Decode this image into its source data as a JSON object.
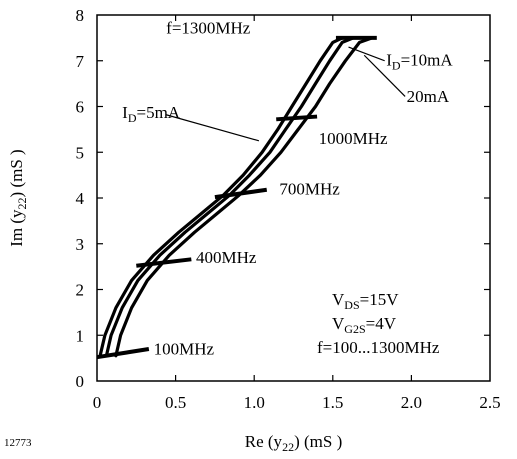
{
  "chart_data": {
    "type": "line",
    "figure_id": "12773",
    "title": "",
    "xlabel": {
      "base": "Re (y",
      "sub": "22",
      "unit": ") (mS )"
    },
    "ylabel": {
      "base": "Im (y",
      "sub": "22",
      "unit": ") (mS )"
    },
    "xlim": [
      0,
      2.5
    ],
    "ylim": [
      0,
      8
    ],
    "x_ticks": [
      0,
      0.5,
      1.0,
      1.5,
      2.0,
      2.5
    ],
    "x_tick_labels": [
      "0",
      "0.5",
      "1.0",
      "1.5",
      "2.0",
      "2.5"
    ],
    "y_ticks": [
      0,
      1,
      2,
      3,
      4,
      5,
      6,
      7,
      8
    ],
    "y_tick_labels": [
      "0",
      "1",
      "2",
      "3",
      "4",
      "5",
      "6",
      "7",
      "8"
    ],
    "grid": false,
    "series": [
      {
        "id": "id5",
        "x": [
          0.02,
          0.05,
          0.12,
          0.22,
          0.36,
          0.52,
          0.66,
          0.8,
          0.93,
          1.05,
          1.15,
          1.24,
          1.33,
          1.42,
          1.5,
          1.56
        ],
        "y": [
          0.55,
          1.0,
          1.6,
          2.2,
          2.75,
          3.25,
          3.65,
          4.05,
          4.5,
          5.0,
          5.5,
          6.0,
          6.5,
          7.0,
          7.4,
          7.5
        ]
      },
      {
        "id": "id10",
        "x": [
          0.06,
          0.09,
          0.16,
          0.26,
          0.4,
          0.56,
          0.7,
          0.84,
          0.97,
          1.1,
          1.2,
          1.3,
          1.39,
          1.48,
          1.56,
          1.63
        ],
        "y": [
          0.55,
          1.0,
          1.6,
          2.2,
          2.75,
          3.25,
          3.65,
          4.05,
          4.5,
          5.0,
          5.5,
          6.0,
          6.5,
          7.0,
          7.4,
          7.5
        ]
      },
      {
        "id": "id20",
        "x": [
          0.12,
          0.15,
          0.22,
          0.32,
          0.46,
          0.62,
          0.76,
          0.9,
          1.04,
          1.17,
          1.28,
          1.39,
          1.48,
          1.58,
          1.67,
          1.75
        ],
        "y": [
          0.55,
          1.0,
          1.6,
          2.2,
          2.75,
          3.25,
          3.65,
          4.05,
          4.5,
          5.0,
          5.5,
          6.0,
          6.5,
          7.0,
          7.4,
          7.5
        ]
      }
    ],
    "frequency_markers": [
      {
        "label": "100MHz",
        "x1": 0.0,
        "y1": 0.52,
        "x2": 0.33,
        "y2": 0.7,
        "label_x": 0.36,
        "label_y": 0.58
      },
      {
        "label": "400MHz",
        "x1": 0.25,
        "y1": 2.52,
        "x2": 0.6,
        "y2": 2.66,
        "label_x": 0.63,
        "label_y": 2.58
      },
      {
        "label": "700MHz",
        "x1": 0.75,
        "y1": 4.02,
        "x2": 1.08,
        "y2": 4.18,
        "label_x": 1.16,
        "label_y": 4.08
      },
      {
        "label": "1000MHz",
        "x1": 1.14,
        "y1": 5.72,
        "x2": 1.4,
        "y2": 5.78,
        "label_x": 1.41,
        "label_y": 5.18
      },
      {
        "label": "f=1300MHz",
        "x1": 1.52,
        "y1": 7.5,
        "x2": 1.78,
        "y2": 7.5,
        "label_x": 0.44,
        "label_y": 7.6
      }
    ],
    "series_labels": [
      {
        "base": "I",
        "sub": "D",
        "rest": "=5mA",
        "x": 0.16,
        "y": 5.75,
        "lx1": 0.44,
        "ly1": 5.82,
        "lx2": 1.03,
        "ly2": 5.25
      },
      {
        "base": "I",
        "sub": "D",
        "rest": "=10mA",
        "x": 1.84,
        "y": 6.9,
        "lx1": 1.83,
        "ly1": 7.0,
        "lx2": 1.6,
        "ly2": 7.3
      },
      {
        "base": "",
        "sub": "",
        "rest": "20mA",
        "x": 1.97,
        "y": 6.1,
        "lx1": 1.96,
        "ly1": 6.22,
        "lx2": 1.7,
        "ly2": 7.12
      }
    ],
    "conditions": [
      {
        "base": "V",
        "sub": "DS",
        "rest": "=15V"
      },
      {
        "base": "V",
        "sub": "G2S",
        "rest": "=4V"
      },
      {
        "base": "",
        "sub": "",
        "rest": "f=100...1300MHz"
      }
    ]
  }
}
